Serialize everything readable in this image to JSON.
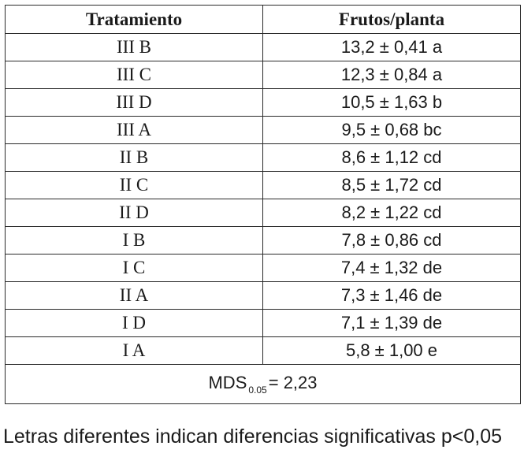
{
  "table": {
    "headers": [
      "Tratamiento",
      "Frutos/planta"
    ],
    "rows": [
      {
        "treatment": "III B",
        "value": "13,2  ±  0,41 a"
      },
      {
        "treatment": "III C",
        "value": "12,3  ± 0,84 a"
      },
      {
        "treatment": "III D",
        "value": "10,5  ±  1,63 b"
      },
      {
        "treatment": "III A",
        "value": "9,5  ±  0,68 bc"
      },
      {
        "treatment": "II B",
        "value": "8,6  ± 1,12 cd"
      },
      {
        "treatment": "II C",
        "value": "8,5  ± 1,72 cd"
      },
      {
        "treatment": "II D",
        "value": "8,2 ±  1,22 cd"
      },
      {
        "treatment": "I B",
        "value": "7,8  ± 0,86  cd"
      },
      {
        "treatment": "I C",
        "value": "7,4  ± 1,32 de"
      },
      {
        "treatment": "II A",
        "value": "7,3  ±  1,46 de"
      },
      {
        "treatment": "I D",
        "value": "7,1  ± 1,39 de"
      },
      {
        "treatment": "I A",
        "value": "5,8  ±  1,00 e"
      }
    ],
    "mds": {
      "label": "MDS",
      "subscript": "0.05",
      "value": "= 2,23"
    }
  },
  "footnote": "Letras diferentes indican diferencias significativas p<0,05"
}
